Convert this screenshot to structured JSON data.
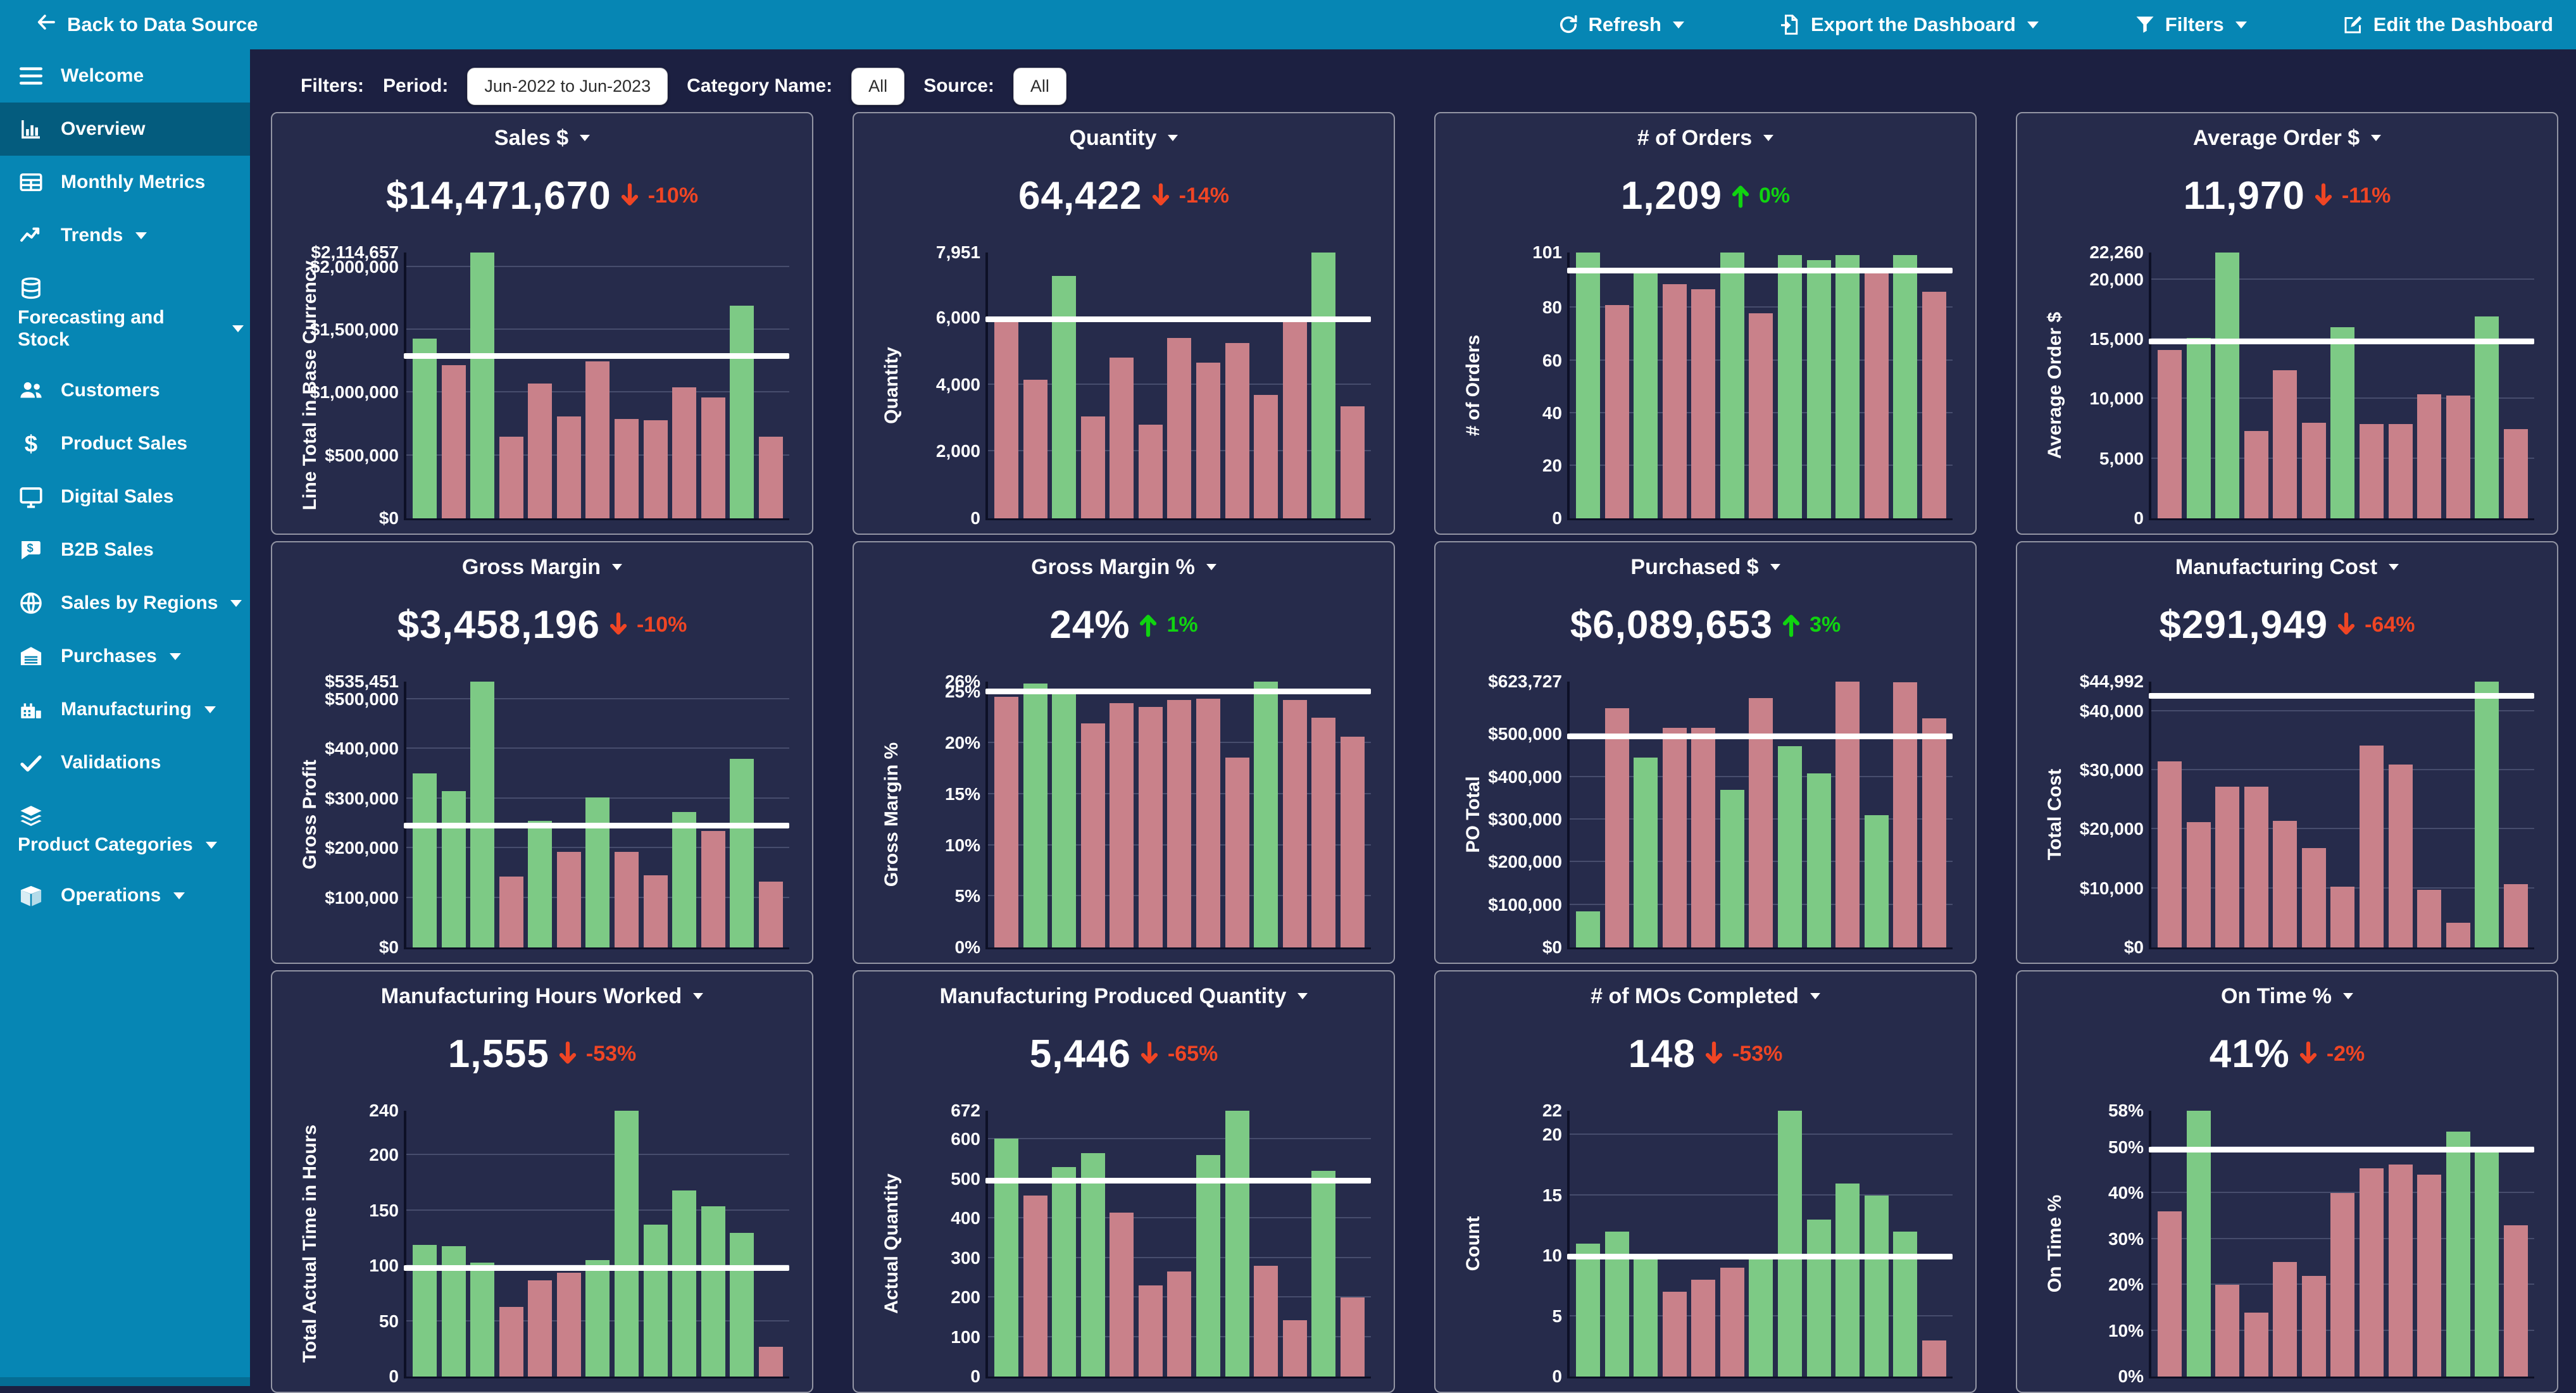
{
  "colors": {
    "teal": "#0686b4",
    "sidebar-active": "#045c7e",
    "page-bg": "#1c2041",
    "card-bg": "#262b4b",
    "bar-green": "#7dca85",
    "bar-red": "#c9818a",
    "ref-line": "#ffffff",
    "delta-up": "#10d410",
    "delta-down": "#f04524",
    "chip-bg": "#ffffff"
  },
  "header": {
    "back": "Back to Data Source",
    "actions": [
      {
        "label": "Refresh",
        "icon": "refresh",
        "caret": true
      },
      {
        "label": "Export the Dashboard",
        "icon": "export",
        "caret": true
      },
      {
        "label": "Filters",
        "icon": "funnel",
        "caret": true
      },
      {
        "label": "Edit the Dashboard",
        "icon": "edit",
        "caret": false
      }
    ]
  },
  "sidebar": {
    "items": [
      {
        "label": "Welcome",
        "icon": "menu"
      },
      {
        "label": "Overview",
        "icon": "bar-chart",
        "active": true
      },
      {
        "label": "Monthly Metrics",
        "icon": "table"
      },
      {
        "label": "Trends",
        "icon": "trend",
        "caret": true
      },
      {
        "label": "Forecasting and Stock",
        "icon": "database",
        "caret": true,
        "wrap": true
      },
      {
        "label": "Customers",
        "icon": "users"
      },
      {
        "label": "Product Sales",
        "icon": "dollar"
      },
      {
        "label": "Digital Sales",
        "icon": "monitor"
      },
      {
        "label": "B2B Sales",
        "icon": "chat-dollar"
      },
      {
        "label": "Sales by Regions",
        "icon": "globe",
        "caret": true
      },
      {
        "label": "Purchases",
        "icon": "warehouse",
        "caret": true
      },
      {
        "label": "Manufacturing",
        "icon": "factory",
        "caret": true
      },
      {
        "label": "Validations",
        "icon": "check"
      },
      {
        "label": "Product Categories",
        "icon": "layers",
        "caret": true,
        "wrap": true
      },
      {
        "label": "Operations",
        "icon": "box",
        "caret": true
      }
    ]
  },
  "filters": {
    "title": "Filters:",
    "period_label": "Period:",
    "period_value": "Jun-2022 to Jun-2023",
    "category_label": "Category Name:",
    "category_value": "All",
    "source_label": "Source:",
    "source_value": "All"
  },
  "chart_data": {
    "note": "see tiles[] — each tile is a 13-bar chart (Jun-2022 to Jun-2023 months, x labels hidden)"
  },
  "tiles": [
    {
      "title": "Sales $",
      "kpi": "$14,471,670",
      "delta": "-10%",
      "trend": "down",
      "y_label": "Line Total in Base Currency",
      "y_max": 2114657,
      "ref": 1290000,
      "ticks": [
        [
          2114657,
          "$2,114,657"
        ],
        [
          2000000,
          "$2,000,000"
        ],
        [
          1500000,
          "$1,500,000"
        ],
        [
          1000000,
          "$1,000,000"
        ],
        [
          500000,
          "$500,000"
        ],
        [
          0,
          "$0"
        ]
      ],
      "values": [
        1430000,
        1220000,
        2114657,
        650000,
        1070000,
        810000,
        1250000,
        790000,
        780000,
        1040000,
        960000,
        1690000,
        650000
      ],
      "bar_colors": [
        "g",
        "r",
        "g",
        "r",
        "r",
        "r",
        "r",
        "r",
        "r",
        "r",
        "r",
        "g",
        "r"
      ]
    },
    {
      "title": "Quantity",
      "kpi": "64,422",
      "delta": "-14%",
      "trend": "down",
      "y_label": "Quantity",
      "y_max": 7951,
      "ref": 5950,
      "ticks": [
        [
          7951,
          "7,951"
        ],
        [
          6000,
          "6,000"
        ],
        [
          4000,
          "4,000"
        ],
        [
          2000,
          "2,000"
        ],
        [
          0,
          "0"
        ]
      ],
      "values": [
        5900,
        4150,
        7250,
        3050,
        4800,
        2800,
        5400,
        4650,
        5250,
        3700,
        5900,
        7951,
        3350
      ],
      "bar_colors": [
        "r",
        "r",
        "g",
        "r",
        "r",
        "r",
        "r",
        "r",
        "r",
        "r",
        "r",
        "g",
        "r"
      ]
    },
    {
      "title": "# of Orders",
      "kpi": "1,209",
      "delta": "0%",
      "trend": "up",
      "y_label": "# of Orders",
      "y_max": 101,
      "ref": 94,
      "ticks": [
        [
          101,
          "101"
        ],
        [
          80,
          "80"
        ],
        [
          60,
          "60"
        ],
        [
          40,
          "40"
        ],
        [
          20,
          "20"
        ],
        [
          0,
          "0"
        ]
      ],
      "values": [
        101,
        81,
        94,
        89,
        87,
        101,
        78,
        100,
        98,
        100,
        93,
        100,
        86
      ],
      "bar_colors": [
        "g",
        "r",
        "g",
        "r",
        "r",
        "g",
        "r",
        "g",
        "g",
        "g",
        "r",
        "g",
        "r"
      ]
    },
    {
      "title": "Average Order $",
      "kpi": "11,970",
      "delta": "-11%",
      "trend": "down",
      "y_label": "Average Order $",
      "y_max": 22260,
      "ref": 14800,
      "ticks": [
        [
          22260,
          "22,260"
        ],
        [
          20000,
          "20,000"
        ],
        [
          15000,
          "15,000"
        ],
        [
          10000,
          "10,000"
        ],
        [
          5000,
          "5,000"
        ],
        [
          0,
          "0"
        ]
      ],
      "values": [
        14100,
        15100,
        22260,
        7300,
        12400,
        8000,
        16000,
        7900,
        7900,
        10400,
        10300,
        16900,
        7500
      ],
      "bar_colors": [
        "r",
        "g",
        "g",
        "r",
        "r",
        "r",
        "g",
        "r",
        "r",
        "r",
        "r",
        "g",
        "r"
      ]
    },
    {
      "title": "Gross Margin",
      "kpi": "$3,458,196",
      "delta": "-10%",
      "trend": "down",
      "y_label": "Gross Profit",
      "y_max": 535451,
      "ref": 245000,
      "ticks": [
        [
          535451,
          "$535,451"
        ],
        [
          500000,
          "$500,000"
        ],
        [
          400000,
          "$400,000"
        ],
        [
          300000,
          "$300,000"
        ],
        [
          200000,
          "$200,000"
        ],
        [
          100000,
          "$100,000"
        ],
        [
          0,
          "$0"
        ]
      ],
      "values": [
        350000,
        315000,
        535451,
        143000,
        255000,
        192000,
        302000,
        193000,
        145000,
        273000,
        235000,
        380000,
        133000
      ],
      "bar_colors": [
        "g",
        "g",
        "g",
        "r",
        "g",
        "r",
        "g",
        "r",
        "r",
        "g",
        "r",
        "g",
        "r"
      ]
    },
    {
      "title": "Gross Margin %",
      "kpi": "24%",
      "delta": "1%",
      "trend": "up",
      "y_label": "Gross Margin %",
      "y_max": 26,
      "ref": 25,
      "ticks": [
        [
          26,
          "26%"
        ],
        [
          25,
          "25%"
        ],
        [
          20,
          "20%"
        ],
        [
          15,
          "15%"
        ],
        [
          10,
          "10%"
        ],
        [
          5,
          "5%"
        ],
        [
          0,
          "0%"
        ]
      ],
      "values": [
        24.5,
        25.8,
        25.3,
        21.9,
        23.9,
        23.5,
        24.2,
        24.3,
        18.6,
        26,
        24.2,
        22.5,
        20.6
      ],
      "bar_colors": [
        "r",
        "g",
        "g",
        "r",
        "r",
        "r",
        "r",
        "r",
        "r",
        "g",
        "r",
        "r",
        "r"
      ]
    },
    {
      "title": "Purchased $",
      "kpi": "$6,089,653",
      "delta": "3%",
      "trend": "up",
      "y_label": "PO Total",
      "y_max": 623727,
      "ref": 495000,
      "ticks": [
        [
          623727,
          "$623,727"
        ],
        [
          500000,
          "$500,000"
        ],
        [
          400000,
          "$400,000"
        ],
        [
          300000,
          "$300,000"
        ],
        [
          200000,
          "$200,000"
        ],
        [
          100000,
          "$100,000"
        ],
        [
          0,
          "$0"
        ]
      ],
      "values": [
        85000,
        562000,
        445000,
        515000,
        515000,
        370000,
        585000,
        472000,
        408000,
        623727,
        310000,
        622000,
        538000
      ],
      "bar_colors": [
        "g",
        "r",
        "g",
        "r",
        "r",
        "g",
        "r",
        "g",
        "g",
        "r",
        "g",
        "r",
        "r"
      ]
    },
    {
      "title": "Manufacturing Cost",
      "kpi": "$291,949",
      "delta": "-64%",
      "trend": "down",
      "y_label": "Total Cost",
      "y_max": 44992,
      "ref": 42500,
      "ticks": [
        [
          44992,
          "$44,992"
        ],
        [
          40000,
          "$40,000"
        ],
        [
          30000,
          "$30,000"
        ],
        [
          20000,
          "$20,000"
        ],
        [
          10000,
          "$10,000"
        ],
        [
          0,
          "$0"
        ]
      ],
      "values": [
        31500,
        21200,
        27200,
        27200,
        21400,
        16800,
        10300,
        34200,
        31000,
        9800,
        4200,
        44992,
        10700
      ],
      "bar_colors": [
        "r",
        "r",
        "r",
        "r",
        "r",
        "r",
        "r",
        "r",
        "r",
        "r",
        "r",
        "g",
        "r"
      ]
    },
    {
      "title": "Manufacturing Hours Worked",
      "kpi": "1,555",
      "delta": "-53%",
      "trend": "down",
      "y_label": "Total Actual Time in Hours",
      "y_max": 240,
      "ref": 98,
      "ticks": [
        [
          240,
          "240"
        ],
        [
          200,
          "200"
        ],
        [
          150,
          "150"
        ],
        [
          100,
          "100"
        ],
        [
          50,
          "50"
        ],
        [
          0,
          "0"
        ]
      ],
      "values": [
        119,
        118,
        103,
        63,
        87,
        94,
        105,
        240,
        137,
        168,
        154,
        130,
        27
      ],
      "bar_colors": [
        "g",
        "g",
        "g",
        "r",
        "r",
        "r",
        "g",
        "g",
        "g",
        "g",
        "g",
        "g",
        "r"
      ]
    },
    {
      "title": "Manufacturing Produced Quantity",
      "kpi": "5,446",
      "delta": "-65%",
      "trend": "down",
      "y_label": "Actual Quantity",
      "y_max": 672,
      "ref": 495,
      "ticks": [
        [
          672,
          "672"
        ],
        [
          600,
          "600"
        ],
        [
          500,
          "500"
        ],
        [
          400,
          "400"
        ],
        [
          300,
          "300"
        ],
        [
          200,
          "200"
        ],
        [
          100,
          "100"
        ],
        [
          0,
          "0"
        ]
      ],
      "values": [
        601,
        458,
        529,
        565,
        415,
        230,
        265,
        560,
        672,
        280,
        143,
        520,
        200
      ],
      "bar_colors": [
        "g",
        "r",
        "g",
        "g",
        "r",
        "r",
        "r",
        "g",
        "g",
        "r",
        "r",
        "g",
        "r"
      ]
    },
    {
      "title": "# of MOs Completed",
      "kpi": "148",
      "delta": "-53%",
      "trend": "down",
      "y_label": "Count",
      "y_max": 22,
      "ref": 9.9,
      "ticks": [
        [
          22,
          "22"
        ],
        [
          20,
          "20"
        ],
        [
          15,
          "15"
        ],
        [
          10,
          "10"
        ],
        [
          5,
          "5"
        ],
        [
          0,
          "0"
        ]
      ],
      "values": [
        11,
        12,
        10,
        7,
        8,
        9,
        10,
        22,
        13,
        16,
        15,
        12,
        3
      ],
      "bar_colors": [
        "g",
        "g",
        "g",
        "r",
        "r",
        "r",
        "g",
        "g",
        "g",
        "g",
        "g",
        "g",
        "r"
      ]
    },
    {
      "title": "On Time %",
      "kpi": "41%",
      "delta": "-2%",
      "trend": "down",
      "y_label": "On Time %",
      "y_max": 58,
      "ref": 49.5,
      "ticks": [
        [
          58,
          "58%"
        ],
        [
          50,
          "50%"
        ],
        [
          40,
          "40%"
        ],
        [
          30,
          "30%"
        ],
        [
          20,
          "20%"
        ],
        [
          10,
          "10%"
        ],
        [
          0,
          "0%"
        ]
      ],
      "values": [
        36,
        58,
        20,
        14,
        25,
        22,
        40,
        45.5,
        46.3,
        44,
        53.5,
        49.5,
        33
      ],
      "bar_colors": [
        "r",
        "g",
        "r",
        "r",
        "r",
        "r",
        "r",
        "r",
        "r",
        "r",
        "g",
        "g",
        "r"
      ]
    }
  ]
}
